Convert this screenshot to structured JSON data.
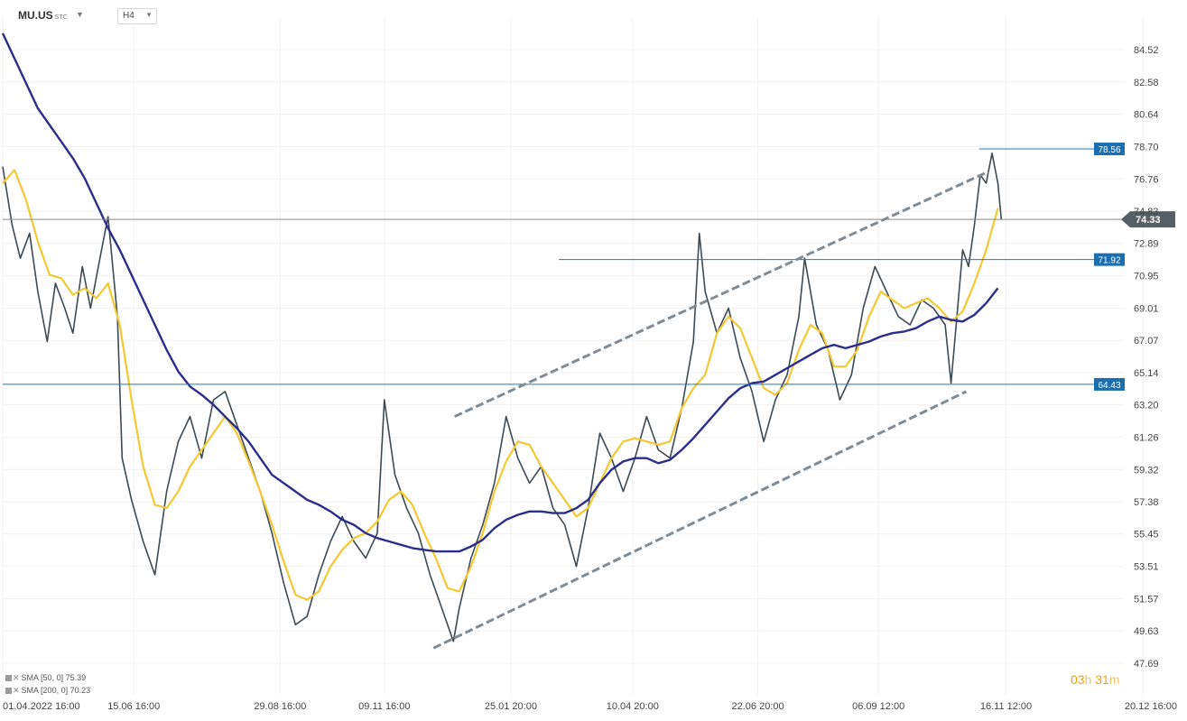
{
  "header": {
    "symbol": "MU.US",
    "symbol_suffix": "STC",
    "timeframe": "H4"
  },
  "legend": [
    {
      "label": "SMA [50, 0]",
      "value": "75.39",
      "color": "#f5c832"
    },
    {
      "label": "SMA [200, 0]",
      "value": "70.23",
      "color": "#2a2e8c"
    }
  ],
  "timer": {
    "hours": "03",
    "hours_unit": "h",
    "minutes": "31",
    "minutes_unit": "m"
  },
  "chart_data": {
    "type": "line",
    "title": "",
    "xlabel": "",
    "ylabel": "",
    "ylim": [
      47.69,
      86.0
    ],
    "y_ticks": [
      "84.52",
      "82.58",
      "80.64",
      "78.70",
      "76.76",
      "74.83",
      "72.89",
      "70.95",
      "69.01",
      "67.07",
      "65.14",
      "63.20",
      "61.26",
      "59.32",
      "57.38",
      "55.45",
      "53.51",
      "51.57",
      "49.63",
      "47.69"
    ],
    "x_ticks": [
      "01.04.2022  16:00",
      "15.06  16:00",
      "29.08  16:00",
      "09.11  16:00",
      "25.01  20:00",
      "10.04  20:00",
      "22.06  20:00",
      "06.09  12:00",
      "16.11  12:00",
      "20.12  16:00"
    ],
    "x_domain": [
      0,
      100
    ],
    "x_tick_positions": [
      0,
      11.2,
      23.7,
      32.6,
      43.4,
      53.8,
      64.5,
      74.8,
      85.7,
      97.4
    ],
    "price_series": [
      {
        "x": 0,
        "y": 77.5
      },
      {
        "x": 0.8,
        "y": 74.0
      },
      {
        "x": 1.5,
        "y": 72.0
      },
      {
        "x": 2.3,
        "y": 73.5
      },
      {
        "x": 3.0,
        "y": 70.0
      },
      {
        "x": 3.8,
        "y": 67.0
      },
      {
        "x": 4.5,
        "y": 70.5
      },
      {
        "x": 5.3,
        "y": 69.0
      },
      {
        "x": 6.0,
        "y": 67.5
      },
      {
        "x": 6.8,
        "y": 71.5
      },
      {
        "x": 7.5,
        "y": 69.0
      },
      {
        "x": 8.3,
        "y": 72.0
      },
      {
        "x": 9.0,
        "y": 74.5
      },
      {
        "x": 9.8,
        "y": 68.5
      },
      {
        "x": 10.2,
        "y": 60.0
      },
      {
        "x": 11.0,
        "y": 57.5
      },
      {
        "x": 12.0,
        "y": 55.0
      },
      {
        "x": 13.0,
        "y": 53.0
      },
      {
        "x": 14.0,
        "y": 58.0
      },
      {
        "x": 15.0,
        "y": 61.0
      },
      {
        "x": 16.0,
        "y": 62.5
      },
      {
        "x": 17.0,
        "y": 60.0
      },
      {
        "x": 18.0,
        "y": 63.5
      },
      {
        "x": 19.0,
        "y": 64.0
      },
      {
        "x": 20.0,
        "y": 62.0
      },
      {
        "x": 21.0,
        "y": 60.0
      },
      {
        "x": 22.0,
        "y": 58.0
      },
      {
        "x": 23.0,
        "y": 55.5
      },
      {
        "x": 24.0,
        "y": 52.5
      },
      {
        "x": 25.0,
        "y": 50.0
      },
      {
        "x": 26.0,
        "y": 50.5
      },
      {
        "x": 27.0,
        "y": 53.0
      },
      {
        "x": 28.0,
        "y": 55.0
      },
      {
        "x": 29.0,
        "y": 56.5
      },
      {
        "x": 30.0,
        "y": 55.0
      },
      {
        "x": 31.0,
        "y": 54.0
      },
      {
        "x": 32.0,
        "y": 55.5
      },
      {
        "x": 32.6,
        "y": 63.5
      },
      {
        "x": 33.5,
        "y": 59.0
      },
      {
        "x": 34.5,
        "y": 57.0
      },
      {
        "x": 35.5,
        "y": 55.5
      },
      {
        "x": 36.5,
        "y": 53.0
      },
      {
        "x": 37.5,
        "y": 51.0
      },
      {
        "x": 38.5,
        "y": 49.0
      },
      {
        "x": 39.0,
        "y": 51.0
      },
      {
        "x": 40.0,
        "y": 54.0
      },
      {
        "x": 41.0,
        "y": 56.0
      },
      {
        "x": 42.0,
        "y": 58.5
      },
      {
        "x": 43.0,
        "y": 62.5
      },
      {
        "x": 44.0,
        "y": 60.0
      },
      {
        "x": 45.0,
        "y": 58.5
      },
      {
        "x": 46.0,
        "y": 59.5
      },
      {
        "x": 47.0,
        "y": 57.0
      },
      {
        "x": 48.0,
        "y": 56.0
      },
      {
        "x": 49.0,
        "y": 53.5
      },
      {
        "x": 50.0,
        "y": 57.0
      },
      {
        "x": 51.0,
        "y": 61.5
      },
      {
        "x": 52.0,
        "y": 60.0
      },
      {
        "x": 53.0,
        "y": 58.0
      },
      {
        "x": 54.0,
        "y": 60.0
      },
      {
        "x": 55.0,
        "y": 62.5
      },
      {
        "x": 56.0,
        "y": 60.5
      },
      {
        "x": 57.0,
        "y": 60.0
      },
      {
        "x": 58.0,
        "y": 63.0
      },
      {
        "x": 59.0,
        "y": 67.0
      },
      {
        "x": 59.5,
        "y": 73.5
      },
      {
        "x": 60.0,
        "y": 70.0
      },
      {
        "x": 61.0,
        "y": 67.5
      },
      {
        "x": 62.0,
        "y": 69.0
      },
      {
        "x": 63.0,
        "y": 66.0
      },
      {
        "x": 64.0,
        "y": 64.0
      },
      {
        "x": 65.0,
        "y": 61.0
      },
      {
        "x": 66.0,
        "y": 63.5
      },
      {
        "x": 67.0,
        "y": 65.0
      },
      {
        "x": 68.0,
        "y": 68.5
      },
      {
        "x": 68.5,
        "y": 72.0
      },
      {
        "x": 69.5,
        "y": 68.0
      },
      {
        "x": 70.5,
        "y": 66.5
      },
      {
        "x": 71.5,
        "y": 63.5
      },
      {
        "x": 72.5,
        "y": 65.0
      },
      {
        "x": 73.5,
        "y": 69.0
      },
      {
        "x": 74.5,
        "y": 71.5
      },
      {
        "x": 75.5,
        "y": 70.0
      },
      {
        "x": 76.5,
        "y": 68.5
      },
      {
        "x": 77.5,
        "y": 68.0
      },
      {
        "x": 78.5,
        "y": 69.5
      },
      {
        "x": 79.5,
        "y": 69.0
      },
      {
        "x": 80.5,
        "y": 68.0
      },
      {
        "x": 81.0,
        "y": 64.5
      },
      {
        "x": 81.5,
        "y": 68.5
      },
      {
        "x": 82.0,
        "y": 72.5
      },
      {
        "x": 82.5,
        "y": 71.5
      },
      {
        "x": 83.0,
        "y": 74.0
      },
      {
        "x": 83.5,
        "y": 77.0
      },
      {
        "x": 84.0,
        "y": 76.5
      },
      {
        "x": 84.5,
        "y": 78.3
      },
      {
        "x": 85.0,
        "y": 76.5
      },
      {
        "x": 85.3,
        "y": 74.33
      }
    ],
    "series": [
      {
        "name": "SMA [50, 0]",
        "color": "#f5c832",
        "values": [
          {
            "x": 0,
            "y": 76.5
          },
          {
            "x": 1,
            "y": 77.3
          },
          {
            "x": 2,
            "y": 75.5
          },
          {
            "x": 3,
            "y": 73.0
          },
          {
            "x": 4,
            "y": 71.0
          },
          {
            "x": 5,
            "y": 70.8
          },
          {
            "x": 6,
            "y": 69.8
          },
          {
            "x": 7,
            "y": 70.2
          },
          {
            "x": 8,
            "y": 69.6
          },
          {
            "x": 9,
            "y": 70.5
          },
          {
            "x": 10,
            "y": 68.0
          },
          {
            "x": 11,
            "y": 63.5
          },
          {
            "x": 12,
            "y": 59.5
          },
          {
            "x": 13,
            "y": 57.2
          },
          {
            "x": 14,
            "y": 57.0
          },
          {
            "x": 15,
            "y": 58.0
          },
          {
            "x": 16,
            "y": 59.5
          },
          {
            "x": 17,
            "y": 60.5
          },
          {
            "x": 18,
            "y": 61.5
          },
          {
            "x": 19,
            "y": 62.5
          },
          {
            "x": 20,
            "y": 61.5
          },
          {
            "x": 21,
            "y": 59.8
          },
          {
            "x": 22,
            "y": 58.0
          },
          {
            "x": 23,
            "y": 56.0
          },
          {
            "x": 24,
            "y": 53.8
          },
          {
            "x": 25,
            "y": 51.8
          },
          {
            "x": 26,
            "y": 51.5
          },
          {
            "x": 27,
            "y": 52.0
          },
          {
            "x": 28,
            "y": 53.5
          },
          {
            "x": 29,
            "y": 54.5
          },
          {
            "x": 30,
            "y": 55.2
          },
          {
            "x": 31,
            "y": 55.5
          },
          {
            "x": 32,
            "y": 56.2
          },
          {
            "x": 33,
            "y": 57.5
          },
          {
            "x": 34,
            "y": 58.0
          },
          {
            "x": 35,
            "y": 57.2
          },
          {
            "x": 36,
            "y": 55.5
          },
          {
            "x": 37,
            "y": 54.0
          },
          {
            "x": 38,
            "y": 52.2
          },
          {
            "x": 39,
            "y": 52.0
          },
          {
            "x": 40,
            "y": 53.5
          },
          {
            "x": 41,
            "y": 55.5
          },
          {
            "x": 42,
            "y": 58.0
          },
          {
            "x": 43,
            "y": 59.8
          },
          {
            "x": 44,
            "y": 61.0
          },
          {
            "x": 45,
            "y": 60.8
          },
          {
            "x": 46,
            "y": 59.5
          },
          {
            "x": 47,
            "y": 58.5
          },
          {
            "x": 48,
            "y": 57.5
          },
          {
            "x": 49,
            "y": 56.5
          },
          {
            "x": 50,
            "y": 57.0
          },
          {
            "x": 51,
            "y": 58.5
          },
          {
            "x": 52,
            "y": 60.0
          },
          {
            "x": 53,
            "y": 61.0
          },
          {
            "x": 54,
            "y": 61.2
          },
          {
            "x": 55,
            "y": 61.0
          },
          {
            "x": 56,
            "y": 60.8
          },
          {
            "x": 57,
            "y": 61.0
          },
          {
            "x": 58,
            "y": 63.0
          },
          {
            "x": 59,
            "y": 64.2
          },
          {
            "x": 60,
            "y": 65.0
          },
          {
            "x": 61,
            "y": 67.5
          },
          {
            "x": 62,
            "y": 68.5
          },
          {
            "x": 63,
            "y": 67.8
          },
          {
            "x": 64,
            "y": 66.0
          },
          {
            "x": 65,
            "y": 64.2
          },
          {
            "x": 66,
            "y": 63.8
          },
          {
            "x": 67,
            "y": 64.5
          },
          {
            "x": 68,
            "y": 66.5
          },
          {
            "x": 69,
            "y": 68.0
          },
          {
            "x": 70,
            "y": 67.5
          },
          {
            "x": 71,
            "y": 65.5
          },
          {
            "x": 72,
            "y": 65.5
          },
          {
            "x": 73,
            "y": 66.5
          },
          {
            "x": 74,
            "y": 68.5
          },
          {
            "x": 75,
            "y": 70.0
          },
          {
            "x": 76,
            "y": 69.5
          },
          {
            "x": 77,
            "y": 69.0
          },
          {
            "x": 78,
            "y": 69.3
          },
          {
            "x": 79,
            "y": 69.6
          },
          {
            "x": 80,
            "y": 69.0
          },
          {
            "x": 81,
            "y": 68.2
          },
          {
            "x": 82,
            "y": 68.8
          },
          {
            "x": 83,
            "y": 70.5
          },
          {
            "x": 84,
            "y": 72.5
          },
          {
            "x": 85,
            "y": 75.0
          }
        ]
      },
      {
        "name": "SMA [200, 0]",
        "color": "#2a2e8c",
        "values": [
          {
            "x": 0,
            "y": 85.5
          },
          {
            "x": 1,
            "y": 84.0
          },
          {
            "x": 2,
            "y": 82.5
          },
          {
            "x": 3,
            "y": 81.0
          },
          {
            "x": 4,
            "y": 80.0
          },
          {
            "x": 5,
            "y": 79.0
          },
          {
            "x": 6,
            "y": 78.0
          },
          {
            "x": 7,
            "y": 76.8
          },
          {
            "x": 8,
            "y": 75.3
          },
          {
            "x": 9,
            "y": 73.8
          },
          {
            "x": 10,
            "y": 72.5
          },
          {
            "x": 11,
            "y": 71.0
          },
          {
            "x": 12,
            "y": 69.5
          },
          {
            "x": 13,
            "y": 68.0
          },
          {
            "x": 14,
            "y": 66.5
          },
          {
            "x": 15,
            "y": 65.2
          },
          {
            "x": 16,
            "y": 64.3
          },
          {
            "x": 17,
            "y": 63.8
          },
          {
            "x": 18,
            "y": 63.2
          },
          {
            "x": 19,
            "y": 62.5
          },
          {
            "x": 20,
            "y": 61.8
          },
          {
            "x": 21,
            "y": 61.0
          },
          {
            "x": 22,
            "y": 60.0
          },
          {
            "x": 23,
            "y": 59.0
          },
          {
            "x": 24,
            "y": 58.5
          },
          {
            "x": 25,
            "y": 58.0
          },
          {
            "x": 26,
            "y": 57.5
          },
          {
            "x": 27,
            "y": 57.2
          },
          {
            "x": 28,
            "y": 56.8
          },
          {
            "x": 29,
            "y": 56.3
          },
          {
            "x": 30,
            "y": 56.0
          },
          {
            "x": 31,
            "y": 55.5
          },
          {
            "x": 32,
            "y": 55.2
          },
          {
            "x": 33,
            "y": 55.0
          },
          {
            "x": 34,
            "y": 54.8
          },
          {
            "x": 35,
            "y": 54.6
          },
          {
            "x": 36,
            "y": 54.5
          },
          {
            "x": 37,
            "y": 54.4
          },
          {
            "x": 38,
            "y": 54.4
          },
          {
            "x": 39,
            "y": 54.4
          },
          {
            "x": 40,
            "y": 54.7
          },
          {
            "x": 41,
            "y": 55.1
          },
          {
            "x": 42,
            "y": 55.8
          },
          {
            "x": 43,
            "y": 56.3
          },
          {
            "x": 44,
            "y": 56.6
          },
          {
            "x": 45,
            "y": 56.8
          },
          {
            "x": 46,
            "y": 56.8
          },
          {
            "x": 47,
            "y": 56.7
          },
          {
            "x": 48,
            "y": 56.7
          },
          {
            "x": 49,
            "y": 57.0
          },
          {
            "x": 50,
            "y": 57.5
          },
          {
            "x": 51,
            "y": 58.5
          },
          {
            "x": 52,
            "y": 59.3
          },
          {
            "x": 53,
            "y": 59.8
          },
          {
            "x": 54,
            "y": 60.0
          },
          {
            "x": 55,
            "y": 60.0
          },
          {
            "x": 56,
            "y": 59.7
          },
          {
            "x": 57,
            "y": 59.9
          },
          {
            "x": 58,
            "y": 60.5
          },
          {
            "x": 59,
            "y": 61.2
          },
          {
            "x": 60,
            "y": 62.0
          },
          {
            "x": 61,
            "y": 62.8
          },
          {
            "x": 62,
            "y": 63.6
          },
          {
            "x": 63,
            "y": 64.2
          },
          {
            "x": 64,
            "y": 64.5
          },
          {
            "x": 65,
            "y": 64.6
          },
          {
            "x": 66,
            "y": 65.0
          },
          {
            "x": 67,
            "y": 65.4
          },
          {
            "x": 68,
            "y": 65.8
          },
          {
            "x": 69,
            "y": 66.2
          },
          {
            "x": 70,
            "y": 66.6
          },
          {
            "x": 71,
            "y": 66.8
          },
          {
            "x": 72,
            "y": 66.6
          },
          {
            "x": 73,
            "y": 66.8
          },
          {
            "x": 74,
            "y": 67.0
          },
          {
            "x": 75,
            "y": 67.3
          },
          {
            "x": 76,
            "y": 67.5
          },
          {
            "x": 77,
            "y": 67.6
          },
          {
            "x": 78,
            "y": 67.8
          },
          {
            "x": 79,
            "y": 68.2
          },
          {
            "x": 80,
            "y": 68.5
          },
          {
            "x": 81,
            "y": 68.3
          },
          {
            "x": 82,
            "y": 68.2
          },
          {
            "x": 83,
            "y": 68.6
          },
          {
            "x": 84,
            "y": 69.3
          },
          {
            "x": 85,
            "y": 70.2
          }
        ]
      }
    ],
    "horizontal_levels": [
      {
        "value": 78.56,
        "label": "78.56",
        "x_start": 83.4
      },
      {
        "value": 71.92,
        "label": "71.92",
        "x_start": 47.5
      },
      {
        "value": 64.43,
        "label": "64.43",
        "x_start": 0
      }
    ],
    "current_price": {
      "value": 74.33,
      "label": "74.33"
    },
    "channel_lines": [
      {
        "from": {
          "x": 38.6,
          "y": 62.5
        },
        "to": {
          "x": 84.2,
          "y": 77.2
        }
      },
      {
        "from": {
          "x": 36.8,
          "y": 48.6
        },
        "to": {
          "x": 82.3,
          "y": 64.0
        }
      }
    ],
    "grid": true,
    "y_axis_position": "right"
  }
}
